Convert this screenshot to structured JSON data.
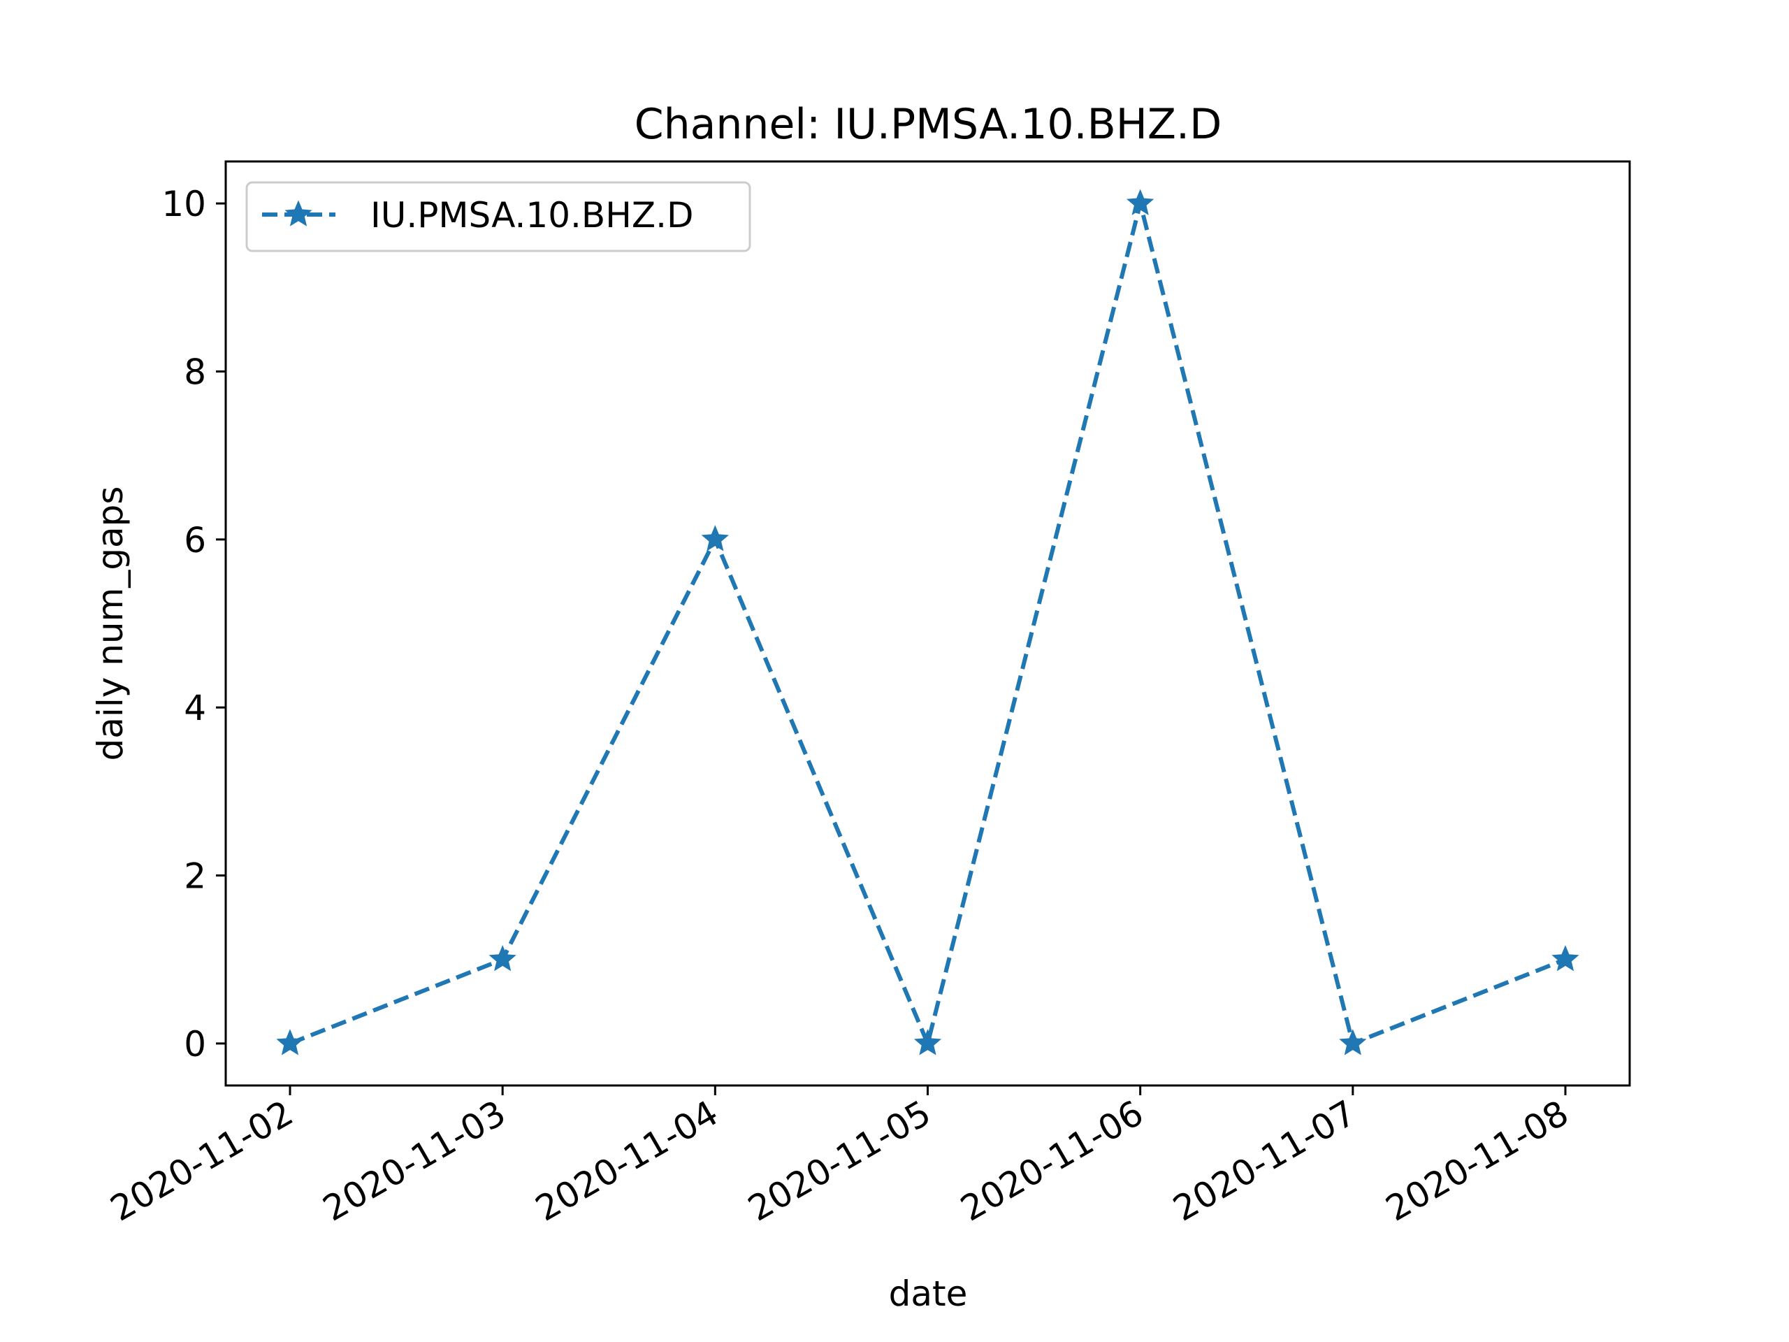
{
  "chart_data": {
    "type": "line",
    "title": "Channel: IU.PMSA.10.BHZ.D",
    "xlabel": "date",
    "ylabel": "daily num_gaps",
    "x": [
      "2020-11-02",
      "2020-11-03",
      "2020-11-04",
      "2020-11-05",
      "2020-11-06",
      "2020-11-07",
      "2020-11-08"
    ],
    "series": [
      {
        "name": "IU.PMSA.10.BHZ.D",
        "values": [
          0,
          1,
          6,
          0,
          10,
          0,
          1
        ],
        "color": "#1f77b4",
        "linestyle": "dashed",
        "marker": "star"
      }
    ],
    "ylim": [
      -0.5,
      10.5
    ],
    "yticks": [
      0,
      2,
      4,
      6,
      8,
      10
    ],
    "grid": false,
    "legend": "upper-left"
  }
}
